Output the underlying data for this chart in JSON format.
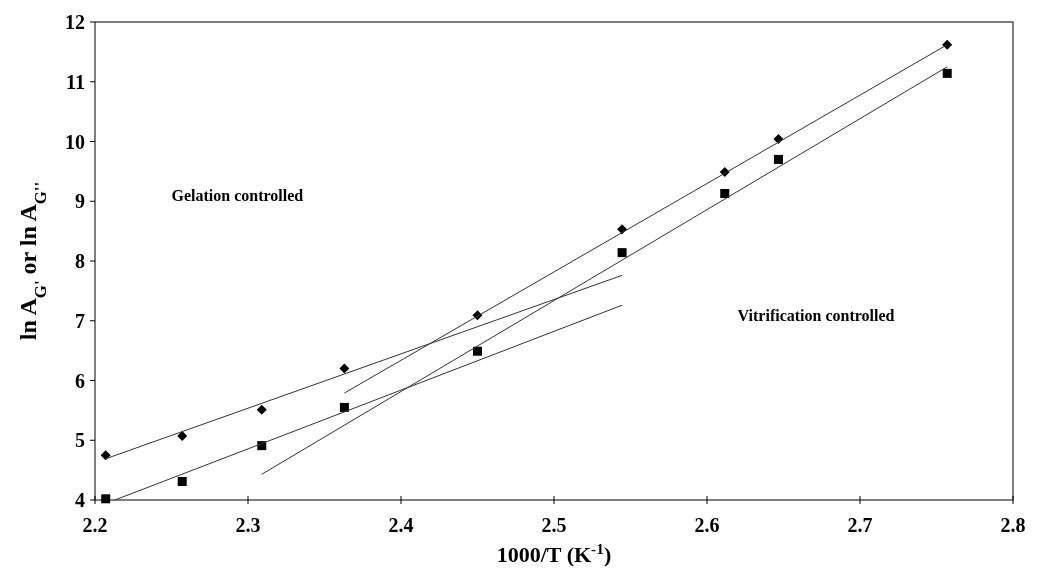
{
  "chart_data": {
    "type": "scatter",
    "xlabel": "1000/T  (K$^{-1}$)",
    "ylabel": "ln A$_{G'}$ or ln A$_{G''}$",
    "xlim": [
      2.2,
      2.8
    ],
    "xticks": [
      2.2,
      2.3,
      2.4,
      2.5,
      2.6,
      2.7,
      2.8
    ],
    "ylim": [
      4,
      12
    ],
    "yticks": [
      4,
      5,
      6,
      7,
      8,
      9,
      10,
      11,
      12
    ],
    "grid": false,
    "series": [
      {
        "marker": "diamond",
        "color": "#000000",
        "x": [
          2.207,
          2.257,
          2.309,
          2.363,
          2.45,
          2.5445,
          2.6116,
          2.6467,
          2.757
        ],
        "values": [
          4.75,
          5.07,
          5.51,
          6.2,
          7.09,
          8.53,
          9.49,
          10.04,
          11.62
        ]
      },
      {
        "marker": "square",
        "color": "#000000",
        "x": [
          2.207,
          2.257,
          2.309,
          2.363,
          2.45,
          2.5445,
          2.6116,
          2.6467,
          2.757
        ],
        "values": [
          4.02,
          4.31,
          4.91,
          5.55,
          6.49,
          8.14,
          9.13,
          9.7,
          11.14
        ]
      },
      {
        "type": "line",
        "color": "#333333",
        "x": [
          2.207,
          2.5445
        ],
        "values": [
          4.69,
          7.76
        ]
      },
      {
        "type": "line",
        "color": "#333333",
        "x": [
          2.363,
          2.757
        ],
        "values": [
          5.79,
          11.62
        ]
      },
      {
        "type": "line",
        "color": "#333333",
        "x": [
          2.213,
          2.5445
        ],
        "values": [
          4,
          7.26
        ]
      },
      {
        "type": "line",
        "color": "#333333",
        "x": [
          2.309,
          2.757
        ],
        "values": [
          4.43,
          11.25
        ]
      }
    ],
    "annotations": [
      "Gelation controlled",
      "Vitrification controlled"
    ]
  }
}
